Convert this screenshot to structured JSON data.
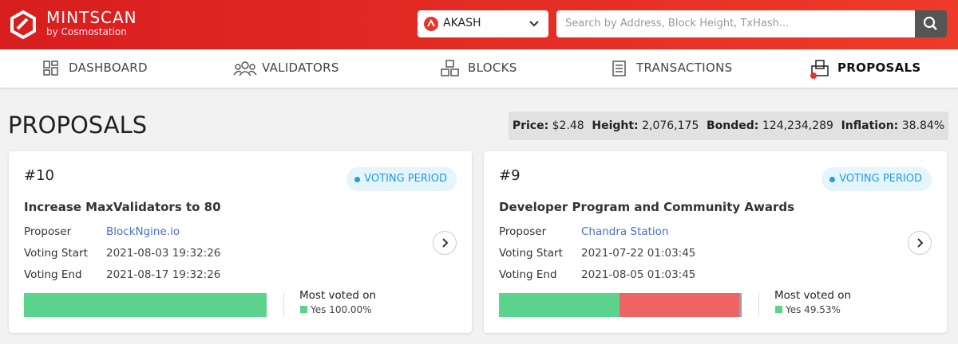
{
  "header": {
    "brand": "MINTSCAN",
    "sub": "by Cosmostation",
    "chain": "AKASH",
    "search_placeholder": "Search by Address, Block Height, TxHash..."
  },
  "nav": [
    "DASHBOARD",
    "VALIDATORS",
    "BLOCKS",
    "TRANSACTIONS",
    "PROPOSALS"
  ],
  "page_title": "PROPOSALS",
  "stats": [
    {
      "label": "Price:",
      "value": "$2.48"
    },
    {
      "label": "Height:",
      "value": "2,076,175"
    },
    {
      "label": "Bonded:",
      "value": "124,234,289"
    },
    {
      "label": "Inflation:",
      "value": "38.84%"
    }
  ],
  "proposals": [
    {
      "id": "#10",
      "status": "VOTING PERIOD",
      "title": "Increase MaxValidators to 80",
      "fields": [
        {
          "label": "Proposer",
          "value": "BlockNgine.io"
        },
        {
          "label": "Voting Start",
          "value": "2021-08-03 19:32:26"
        },
        {
          "label": "Voting End",
          "value": "2021-08-17 19:32:26"
        }
      ],
      "most_voted_label": "Most voted on",
      "most_voted": "Yes 100.00%",
      "votes": [
        {
          "value": 100,
          "color": "#5cd38c"
        }
      ]
    },
    {
      "id": "#9",
      "status": "VOTING PERIOD",
      "title": "Developer Program and Community Awards",
      "fields": [
        {
          "label": "Proposer",
          "value": "Chandra Station"
        },
        {
          "label": "Voting Start",
          "value": "2021-07-22 01:03:45"
        },
        {
          "label": "Voting End",
          "value": "2021-08-05 01:03:45"
        }
      ],
      "most_voted_label": "Most voted on",
      "most_voted": "Yes 49.53%",
      "votes": [
        {
          "value": 49.53,
          "color": "#5cd38c"
        },
        {
          "value": 49.5,
          "color": "#ee6363"
        },
        {
          "value": 0.97,
          "color": "#9aa0a8"
        }
      ]
    }
  ]
}
